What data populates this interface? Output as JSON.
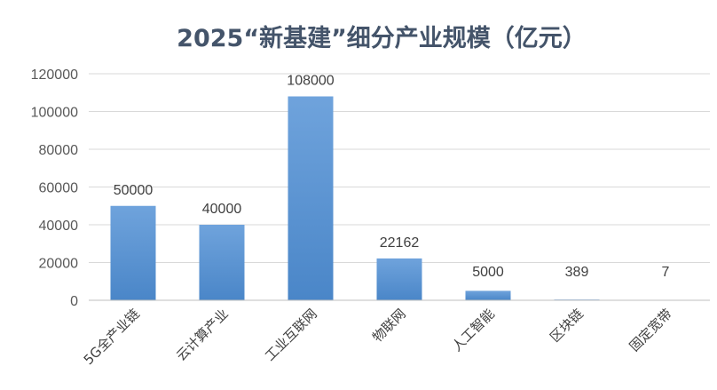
{
  "chart_data": {
    "type": "bar",
    "title": "2025“新基建”细分产业规模（亿元）",
    "xlabel": "",
    "ylabel": "",
    "categories": [
      "5G全产业链",
      "云计算产业",
      "工业互联网",
      "物联网",
      "人工智能",
      "区块链",
      "固定宽带"
    ],
    "values": [
      50000,
      40000,
      108000,
      22162,
      5000,
      389,
      7
    ],
    "data_labels": [
      "50000",
      "40000",
      "108000",
      "22162",
      "5000",
      "389",
      "7"
    ],
    "ylim": [
      0,
      120000
    ],
    "yticks": [
      0,
      20000,
      40000,
      60000,
      80000,
      100000,
      120000
    ],
    "grid": true,
    "legend": "none",
    "colors": {
      "bar_top": "#6FA3DC",
      "bar_bottom": "#4A86C8",
      "title": "#44546A"
    }
  }
}
